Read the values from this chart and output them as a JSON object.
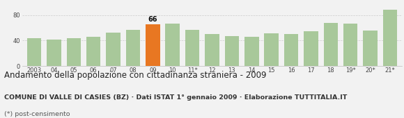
{
  "categories": [
    "2003",
    "04",
    "05",
    "06",
    "07",
    "08",
    "09",
    "10",
    "11*",
    "12",
    "13",
    "14",
    "15",
    "16",
    "17",
    "18",
    "19*",
    "20*",
    "21*"
  ],
  "values": [
    44,
    42,
    44,
    46,
    52,
    57,
    66,
    67,
    57,
    50,
    47,
    46,
    51,
    50,
    55,
    68,
    67,
    56,
    88
  ],
  "highlight_index": 6,
  "highlight_value": 66,
  "bar_color": "#a8c89a",
  "highlight_color": "#e87722",
  "background_color": "#f2f2f2",
  "grid_color": "#cccccc",
  "ylim": [
    0,
    100
  ],
  "yticks": [
    0,
    40,
    80
  ],
  "title": "Andamento della popolazione con cittadinanza straniera - 2009",
  "subtitle": "COMUNE DI VALLE DI CASIES (BZ) · Dati ISTAT 1° gennaio 2009 · Elaborazione TUTTITALIA.IT",
  "footnote": "(*) post-censimento",
  "title_fontsize": 8.5,
  "subtitle_fontsize": 6.8,
  "footnote_fontsize": 6.8,
  "tick_fontsize": 6.0,
  "label_fontsize": 6.5
}
